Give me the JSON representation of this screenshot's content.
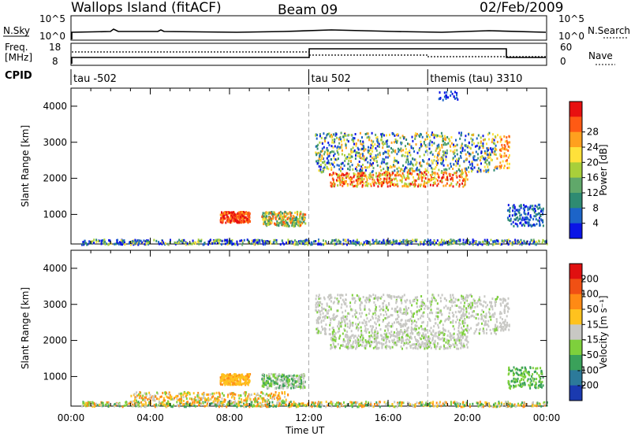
{
  "header": {
    "title": "Wallops Island (fitACF)",
    "beam": "Beam 09",
    "date": "02/Feb/2009"
  },
  "top_panels": {
    "nsky_label": "N.Sky",
    "nsearch_label": "N.Search",
    "freq_label_line1": "Freq.",
    "freq_label_line2": "[MHz]",
    "nave_label": "Nave",
    "cpid_label": "CPID",
    "noise_ticks": [
      "10^5",
      "10^0"
    ],
    "freq_ticks": [
      "18",
      "8"
    ],
    "nave_ticks": [
      "60",
      "0"
    ]
  },
  "cpid_segments": [
    {
      "label": "tau -502",
      "start_hour": 0
    },
    {
      "label": "tau 502",
      "start_hour": 12
    },
    {
      "label": "themis (tau) 3310",
      "start_hour": 18
    }
  ],
  "chart_data": [
    {
      "type": "heatmap",
      "name": "power",
      "ylabel": "Slant Range [km]",
      "xlabel": "Time UT",
      "x_ticks": [
        "00:00",
        "04:00",
        "08:00",
        "12:00",
        "16:00",
        "20:00",
        "00:00"
      ],
      "y_ticks": [
        1000,
        2000,
        3000,
        4000
      ],
      "ylim": [
        180,
        4500
      ],
      "colorbar": {
        "label": "Power [dB]",
        "ticks": [
          4,
          8,
          12,
          16,
          20,
          24,
          28
        ],
        "colors": [
          "#0a14e6",
          "#1c64c8",
          "#2e8b72",
          "#60a86a",
          "#a8cf3a",
          "#ffe13a",
          "#ffa01e",
          "#ff5a14",
          "#e81010"
        ]
      }
    },
    {
      "type": "heatmap",
      "name": "velocity",
      "ylabel": "Slant Range [km]",
      "xlabel": "Time UT",
      "x_ticks": [
        "00:00",
        "04:00",
        "08:00",
        "12:00",
        "16:00",
        "20:00",
        "00:00"
      ],
      "y_ticks": [
        1000,
        2000,
        3000,
        4000
      ],
      "ylim": [
        180,
        4500
      ],
      "colorbar": {
        "label": "Velocity [m s⁻¹]",
        "ticks": [
          200,
          100,
          50,
          15,
          -15,
          -50,
          -100,
          -200
        ],
        "colors": [
          "#1a3ab0",
          "#2c7a9a",
          "#3aa15a",
          "#7ed03c",
          "#c8c8c4",
          "#ffc21e",
          "#ff8a14",
          "#f05014",
          "#e01010"
        ]
      }
    }
  ],
  "x_axis_title": "Time UT"
}
